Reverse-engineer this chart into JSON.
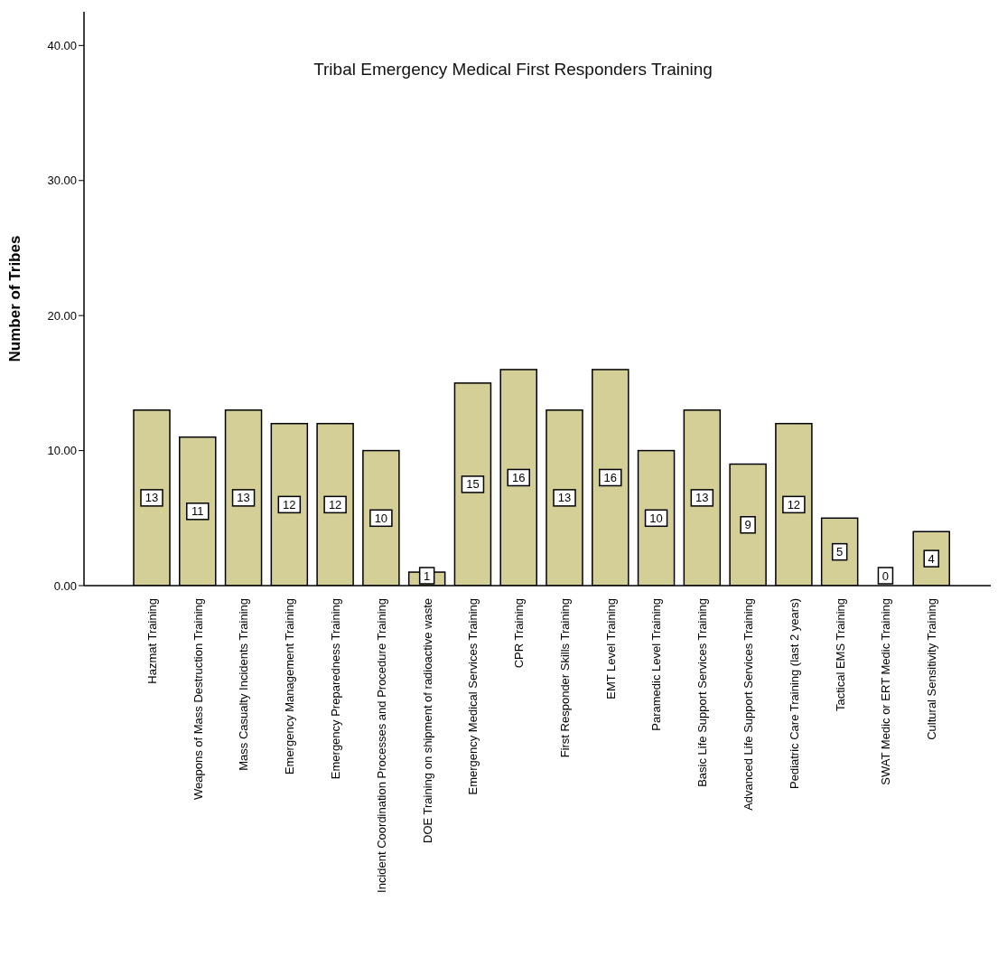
{
  "chart_data": {
    "type": "bar",
    "title": "Tribal Emergency Medical First Responders Training",
    "ylabel": "Number of Tribes",
    "categories": [
      "Hazmat Training",
      "Weapons of Mass Destruction Training",
      "Mass Casualty Incidents Training",
      "Emergency Management Training",
      "Emergency Preparedness Training",
      "Incident Coordination Processes and Procedure Training",
      "DOE Training on shipment of radioactive waste",
      "Emergency Medical Services Training",
      "CPR Training",
      "First Responder Skills Training",
      "EMT Level Training",
      "Paramedic Level Training",
      "Basic Life Support Services Training",
      "Advanced Life Support Services Training",
      "Pediatric Care Training (last 2 years)",
      "Tactical EMS Training",
      "SWAT Medic or ERT Medic Training",
      "Cultural Sensitivity Training"
    ],
    "values": [
      13,
      11,
      13,
      12,
      12,
      10,
      1,
      15,
      16,
      13,
      16,
      10,
      13,
      9,
      12,
      5,
      0,
      4
    ],
    "color": "#d4cf96",
    "ylim": [
      0,
      42.5
    ],
    "yticks": [
      {
        "value": 0,
        "label": "0.00"
      },
      {
        "value": 10,
        "label": "10.00"
      },
      {
        "value": 20,
        "label": "20.00"
      },
      {
        "value": 30,
        "label": "30.00"
      },
      {
        "value": 40,
        "label": "40.00"
      }
    ],
    "data_labels": true,
    "grid": false
  }
}
